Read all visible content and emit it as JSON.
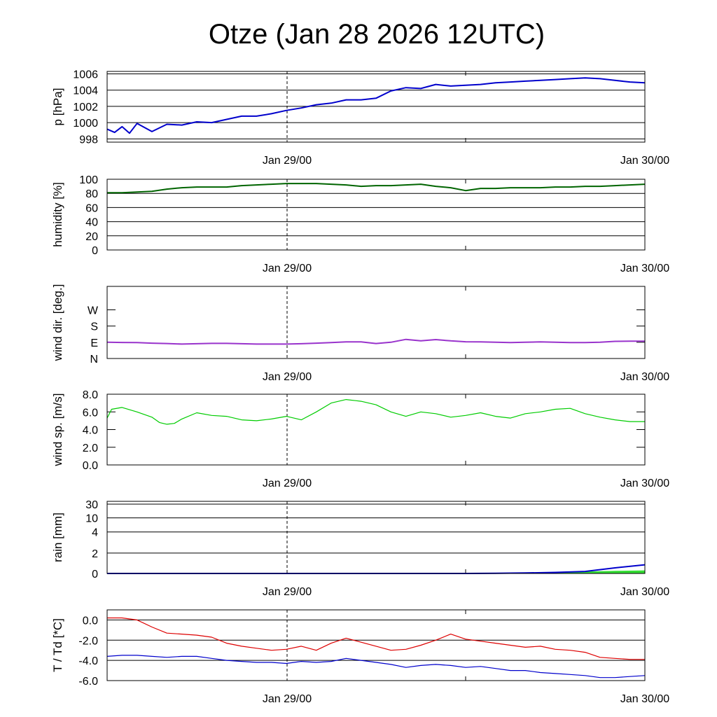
{
  "title": "Otze (Jan 28 2026 12UTC)",
  "colors": {
    "pressure": "#0000cc",
    "humidity": "#006400",
    "wind_dir": "#9933cc",
    "wind_sp": "#00cc00",
    "rain_total": "#0000cc",
    "rain_fill": "#33dd33",
    "temp": "#dd0000",
    "dewpoint": "#0000cc",
    "grid": "#000000"
  },
  "chart_data": [
    {
      "type": "line",
      "id": "pressure",
      "ylabel": "p [hPa]",
      "ylim": [
        997.6,
        1006.3
      ],
      "yticks": [
        998,
        1000,
        1002,
        1004,
        1006
      ],
      "ytick_labels": [
        "998",
        "1000",
        "1002",
        "1004",
        "1006"
      ],
      "grid": true,
      "x_ticks": [
        "Jan 29/00",
        "Jan 30/00"
      ],
      "series": [
        {
          "name": "pressure",
          "x": [
            0,
            0.5,
            1,
            1.5,
            2,
            3,
            4,
            5,
            6,
            7,
            8,
            9,
            10,
            11,
            12,
            13,
            14,
            15,
            16,
            17,
            18,
            19,
            20,
            21,
            22,
            23,
            24,
            25,
            26,
            27,
            28,
            29,
            30,
            31,
            32,
            33,
            34,
            35,
            36
          ],
          "values": [
            999.2,
            998.8,
            999.5,
            998.7,
            999.9,
            998.9,
            999.8,
            999.7,
            1000.1,
            1000.0,
            1000.4,
            1000.8,
            1000.8,
            1001.1,
            1001.5,
            1001.8,
            1002.2,
            1002.4,
            1002.8,
            1002.8,
            1003.0,
            1003.9,
            1004.3,
            1004.2,
            1004.7,
            1004.5,
            1004.6,
            1004.7,
            1004.9,
            1005.0,
            1005.1,
            1005.2,
            1005.3,
            1005.4,
            1005.5,
            1005.4,
            1005.2,
            1005.0,
            1004.9
          ]
        }
      ]
    },
    {
      "type": "line",
      "id": "humidity",
      "ylabel": "humidity [%]",
      "ylim": [
        0,
        100
      ],
      "yticks": [
        0,
        20,
        40,
        60,
        80,
        100
      ],
      "ytick_labels": [
        "0",
        "20",
        "40",
        "60",
        "80",
        "100"
      ],
      "grid": true,
      "x_ticks": [
        "Jan 29/00",
        "Jan 30/00"
      ],
      "series": [
        {
          "name": "humidity",
          "x": [
            0,
            1,
            2,
            3,
            4,
            5,
            6,
            7,
            8,
            9,
            10,
            11,
            12,
            13,
            14,
            15,
            16,
            17,
            18,
            19,
            20,
            21,
            22,
            23,
            24,
            25,
            26,
            27,
            28,
            29,
            30,
            31,
            32,
            33,
            34,
            35,
            36
          ],
          "values": [
            81,
            81,
            82,
            83,
            86,
            88,
            89,
            89,
            89,
            91,
            92,
            93,
            94,
            94,
            94,
            93,
            92,
            90,
            91,
            91,
            92,
            93,
            90,
            88,
            84,
            87,
            87,
            88,
            88,
            88,
            89,
            89,
            90,
            90,
            91,
            92,
            93
          ]
        }
      ]
    },
    {
      "type": "line",
      "id": "wind_dir",
      "ylabel": "wind dir. [deg.]",
      "ylim": [
        0,
        400
      ],
      "yticks": [
        0,
        90,
        180,
        270
      ],
      "ytick_labels": [
        "N",
        "E",
        "S",
        "W"
      ],
      "grid": false,
      "x_ticks": [
        "Jan 29/00",
        "Jan 30/00"
      ],
      "series": [
        {
          "name": "wind direction",
          "x": [
            0,
            1,
            2,
            3,
            4,
            5,
            6,
            7,
            8,
            9,
            10,
            11,
            12,
            13,
            14,
            15,
            16,
            17,
            18,
            19,
            20,
            21,
            22,
            23,
            24,
            25,
            26,
            27,
            28,
            29,
            30,
            31,
            32,
            33,
            34,
            35,
            36
          ],
          "values": [
            90,
            89,
            88,
            85,
            83,
            80,
            82,
            84,
            84,
            82,
            80,
            80,
            80,
            82,
            85,
            88,
            92,
            92,
            83,
            90,
            106,
            98,
            105,
            98,
            93,
            92,
            90,
            88,
            90,
            92,
            90,
            88,
            88,
            90,
            95,
            96,
            96
          ]
        }
      ]
    },
    {
      "type": "line",
      "id": "wind_sp",
      "ylabel": "wind sp. [m/s]",
      "ylim": [
        0,
        8.0
      ],
      "yticks": [
        0,
        2,
        4,
        6,
        8
      ],
      "ytick_labels": [
        "0.0",
        "2.0",
        "4.0",
        "6.0",
        "8.0"
      ],
      "grid": false,
      "x_ticks": [
        "Jan 29/00",
        "Jan 30/00"
      ],
      "series": [
        {
          "name": "wind speed",
          "x": [
            0,
            0.3,
            1,
            2,
            3,
            3.5,
            4,
            4.5,
            5,
            6,
            7,
            8,
            9,
            10,
            11,
            12,
            13,
            14,
            15,
            16,
            17,
            18,
            19,
            20,
            21,
            22,
            23,
            24,
            25,
            26,
            27,
            28,
            29,
            30,
            31,
            32,
            33,
            34,
            35,
            36
          ],
          "values": [
            5.3,
            6.3,
            6.5,
            6.0,
            5.4,
            4.8,
            4.6,
            4.7,
            5.2,
            5.9,
            5.6,
            5.5,
            5.1,
            5.0,
            5.2,
            5.5,
            5.1,
            6.0,
            7.0,
            7.4,
            7.2,
            6.8,
            6.0,
            5.5,
            6.0,
            5.8,
            5.4,
            5.6,
            5.9,
            5.5,
            5.3,
            5.8,
            6.0,
            6.3,
            6.4,
            5.8,
            5.4,
            5.1,
            4.9,
            4.9
          ]
        }
      ]
    },
    {
      "type": "area",
      "id": "rain",
      "ylabel": "rain [mm]",
      "ylim": [
        0,
        30
      ],
      "yticks": [
        0,
        2,
        4,
        10,
        30
      ],
      "ytick_labels": [
        "0",
        "2",
        "4",
        "10",
        "30"
      ],
      "grid": true,
      "x_ticks": [
        "Jan 29/00",
        "Jan 30/00"
      ],
      "series": [
        {
          "name": "accumulated rain",
          "x": [
            0,
            24,
            26,
            28,
            30,
            32,
            34,
            36
          ],
          "values": [
            0,
            0,
            0.02,
            0.05,
            0.1,
            0.2,
            0.55,
            0.85
          ]
        },
        {
          "name": "rain",
          "x": [
            0,
            24,
            28,
            31,
            32,
            34,
            36
          ],
          "values": [
            0,
            0,
            0.04,
            0.08,
            0.15,
            0.22,
            0.27
          ]
        }
      ]
    },
    {
      "type": "line",
      "id": "temp",
      "ylabel": "T / Td [*C]",
      "ylim": [
        -6.0,
        1.0
      ],
      "yticks": [
        -6,
        -4,
        -2,
        0
      ],
      "ytick_labels": [
        "-6.0",
        "-4.0",
        "-2.0",
        "0.0"
      ],
      "grid": true,
      "x_ticks": [
        "Jan 29/00",
        "Jan 30/00"
      ],
      "series": [
        {
          "name": "T",
          "x": [
            0,
            1,
            2,
            3,
            4,
            5,
            6,
            7,
            8,
            9,
            10,
            11,
            12,
            13,
            14,
            15,
            16,
            17,
            18,
            19,
            20,
            21,
            22,
            23,
            24,
            25,
            26,
            27,
            28,
            29,
            30,
            31,
            32,
            33,
            34,
            35,
            36
          ],
          "values": [
            0.2,
            0.2,
            0.0,
            -0.7,
            -1.3,
            -1.4,
            -1.5,
            -1.7,
            -2.3,
            -2.6,
            -2.8,
            -3.0,
            -2.9,
            -2.6,
            -3.0,
            -2.3,
            -1.8,
            -2.2,
            -2.6,
            -3.0,
            -2.9,
            -2.5,
            -2.0,
            -1.4,
            -1.9,
            -2.1,
            -2.3,
            -2.5,
            -2.7,
            -2.6,
            -2.9,
            -3.0,
            -3.2,
            -3.7,
            -3.8,
            -3.9,
            -3.9
          ]
        },
        {
          "name": "Td",
          "x": [
            0,
            1,
            2,
            3,
            4,
            5,
            6,
            7,
            8,
            9,
            10,
            11,
            12,
            13,
            14,
            15,
            16,
            17,
            18,
            19,
            20,
            21,
            22,
            23,
            24,
            25,
            26,
            27,
            28,
            29,
            30,
            31,
            32,
            33,
            34,
            35,
            36
          ],
          "values": [
            -3.6,
            -3.5,
            -3.5,
            -3.6,
            -3.7,
            -3.6,
            -3.6,
            -3.8,
            -4.0,
            -4.1,
            -4.2,
            -4.2,
            -4.3,
            -4.1,
            -4.2,
            -4.1,
            -3.8,
            -4.0,
            -4.2,
            -4.4,
            -4.7,
            -4.5,
            -4.4,
            -4.5,
            -4.7,
            -4.6,
            -4.8,
            -5.0,
            -5.0,
            -5.2,
            -5.3,
            -5.4,
            -5.5,
            -5.7,
            -5.7,
            -5.6,
            -5.5
          ]
        }
      ]
    }
  ]
}
